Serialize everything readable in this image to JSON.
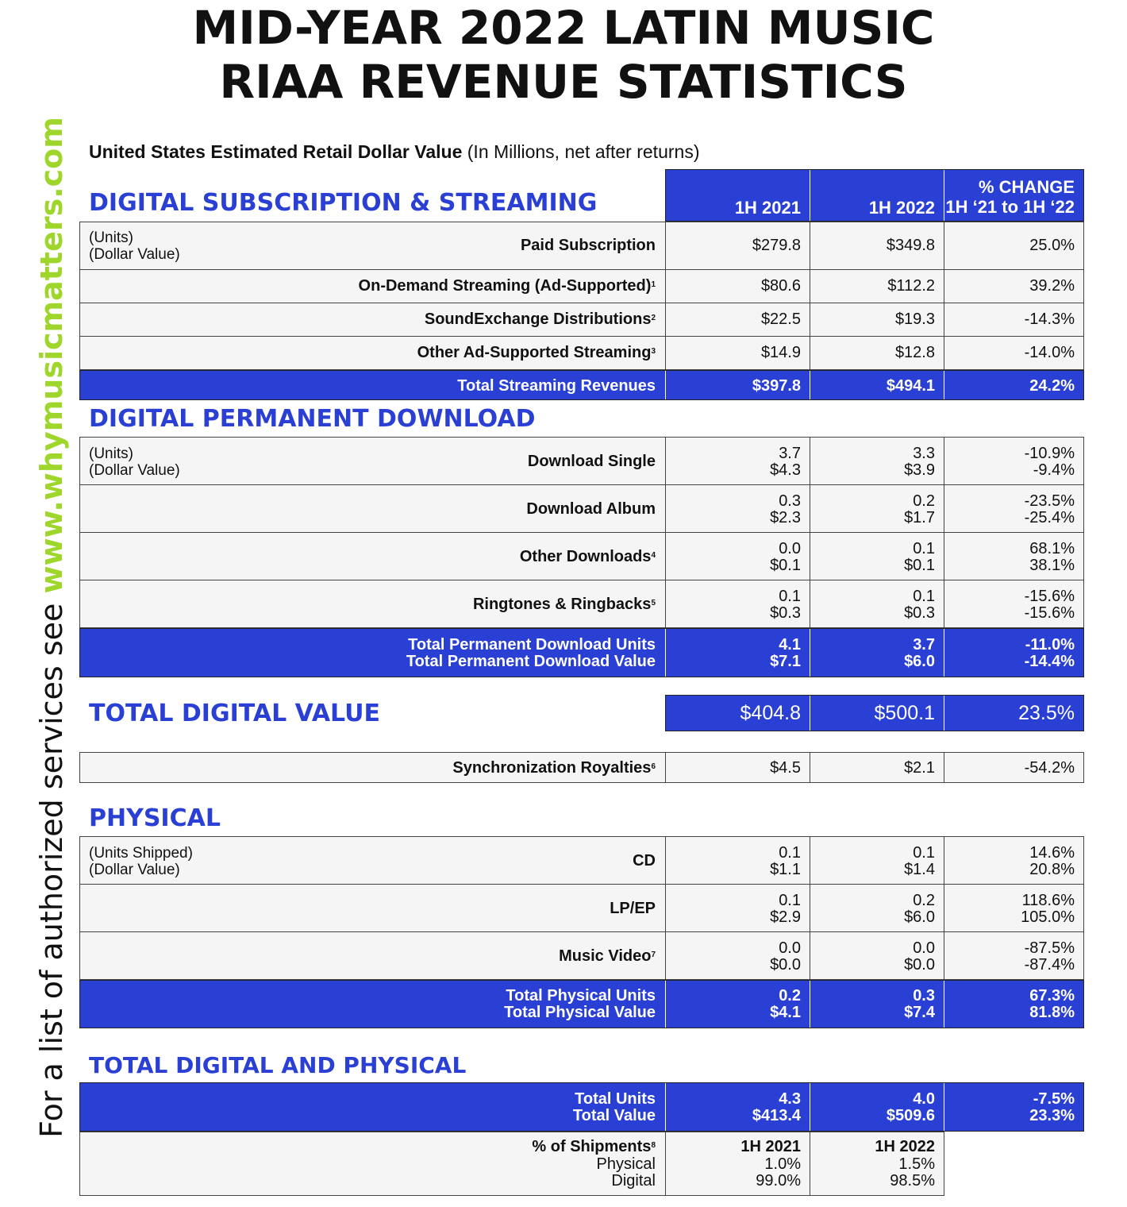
{
  "title_line1": "MID-YEAR 2022 LATIN MUSIC",
  "title_line2": "RIAA REVENUE STATISTICS",
  "side_text_prefix": "For a list of authorized services see ",
  "side_text_url": "www.whymusicmatters.com",
  "subtitle_bold": "United States Estimated Retail Dollar Value",
  "subtitle_rest": " (In Millions, net after returns)",
  "columns": {
    "h1": "1H 2021",
    "h2": "1H 2022",
    "pct_line1": "% CHANGE",
    "pct_line2": "1H ‘21 to 1H ‘22"
  },
  "unit_note_units": "(Units)",
  "unit_note_dollar": "(Dollar Value)",
  "unit_note_units_shipped": "(Units Shipped)",
  "streaming": {
    "heading": "DIGITAL SUBSCRIPTION & STREAMING",
    "rows": [
      {
        "label": "Paid Subscription",
        "sup": "",
        "v1": "$279.8",
        "v2": "$349.8",
        "pct": "25.0%"
      },
      {
        "label": "On-Demand Streaming (Ad-Supported)",
        "sup": "1",
        "v1": "$80.6",
        "v2": "$112.2",
        "pct": "39.2%"
      },
      {
        "label": "SoundExchange Distributions",
        "sup": "2",
        "v1": "$22.5",
        "v2": "$19.3",
        "pct": "-14.3%"
      },
      {
        "label": "Other Ad-Supported Streaming",
        "sup": "3",
        "v1": "$14.9",
        "v2": "$12.8",
        "pct": "-14.0%"
      }
    ],
    "total": {
      "label": "Total Streaming Revenues",
      "v1": "$397.8",
      "v2": "$494.1",
      "pct": "24.2%"
    }
  },
  "downloads": {
    "heading": "DIGITAL PERMANENT DOWNLOAD",
    "rows": [
      {
        "label": "Download Single",
        "sup": "",
        "u1": "3.7",
        "d1": "$4.3",
        "u2": "3.3",
        "d2": "$3.9",
        "pu": "-10.9%",
        "pd": "-9.4%"
      },
      {
        "label": "Download Album",
        "sup": "",
        "u1": "0.3",
        "d1": "$2.3",
        "u2": "0.2",
        "d2": "$1.7",
        "pu": "-23.5%",
        "pd": "-25.4%"
      },
      {
        "label": "Other Downloads",
        "sup": "4",
        "u1": "0.0",
        "d1": "$0.1",
        "u2": "0.1",
        "d2": "$0.1",
        "pu": "68.1%",
        "pd": "38.1%"
      },
      {
        "label": "Ringtones & Ringbacks",
        "sup": "5",
        "u1": "0.1",
        "d1": "$0.3",
        "u2": "0.1",
        "d2": "$0.3",
        "pu": "-15.6%",
        "pd": "-15.6%"
      }
    ],
    "total": {
      "label_units": "Total Permanent Download Units",
      "label_value": "Total Permanent Download Value",
      "u1": "4.1",
      "d1": "$7.1",
      "u2": "3.7",
      "d2": "$6.0",
      "pu": "-11.0%",
      "pd": "-14.4%"
    }
  },
  "total_digital": {
    "heading": "TOTAL DIGITAL VALUE",
    "v1": "$404.8",
    "v2": "$500.1",
    "pct": "23.5%"
  },
  "sync": {
    "label": "Synchronization Royalties",
    "sup": "6",
    "v1": "$4.5",
    "v2": "$2.1",
    "pct": "-54.2%"
  },
  "physical": {
    "heading": "PHYSICAL",
    "rows": [
      {
        "label": "CD",
        "sup": "",
        "u1": "0.1",
        "d1": "$1.1",
        "u2": "0.1",
        "d2": "$1.4",
        "pu": "14.6%",
        "pd": "20.8%"
      },
      {
        "label": "LP/EP",
        "sup": "",
        "u1": "0.1",
        "d1": "$2.9",
        "u2": "0.2",
        "d2": "$6.0",
        "pu": "118.6%",
        "pd": "105.0%"
      },
      {
        "label": "Music Video",
        "sup": "7",
        "u1": "0.0",
        "d1": "$0.0",
        "u2": "0.0",
        "d2": "$0.0",
        "pu": "-87.5%",
        "pd": "-87.4%"
      }
    ],
    "total": {
      "label_units": "Total Physical Units",
      "label_value": "Total Physical Value",
      "u1": "0.2",
      "d1": "$4.1",
      "u2": "0.3",
      "d2": "$7.4",
      "pu": "67.3%",
      "pd": "81.8%"
    }
  },
  "total_both": {
    "heading": "TOTAL DIGITAL AND PHYSICAL",
    "label_units": "Total Units",
    "label_value": "Total Value",
    "u1": "4.3",
    "d1": "$413.4",
    "u2": "4.0",
    "d2": "$509.6",
    "pu": "-7.5%",
    "pd": "23.3%"
  },
  "shipments": {
    "label": "% of Shipments",
    "sup": "8",
    "physical_label": "Physical",
    "digital_label": "Digital",
    "h1": "1H 2021",
    "h2": "1H 2022",
    "phys1": "1.0%",
    "dig1": "99.0%",
    "phys2": "1.5%",
    "dig2": "98.5%"
  },
  "colors": {
    "accent_blue": "#2a3fd3",
    "url_green": "#9ed62b",
    "row_bg": "#f5f5f5"
  }
}
